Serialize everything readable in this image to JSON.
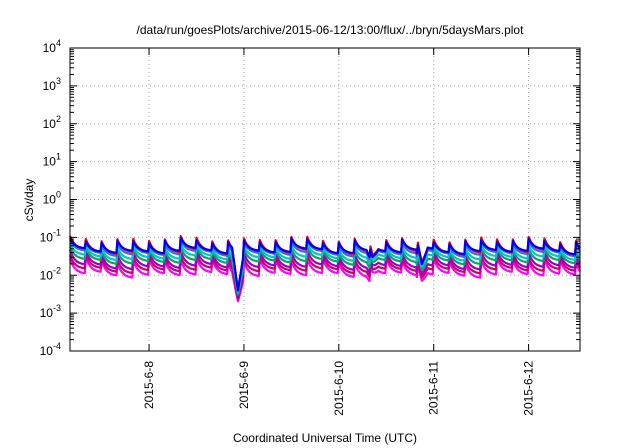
{
  "chart_data": {
    "type": "line",
    "title": "/data/run/goesPlots/archive/2015-06-12/13:00/flux/../bryn/5daysMars.plot",
    "xlabel": "Coordinated Universal Time (UTC)",
    "ylabel": "cSv/day",
    "yscale": "log",
    "ylim": [
      0.0001,
      10000
    ],
    "xlim": [
      "2015-06-07T04:00",
      "2015-06-12T13:00"
    ],
    "grid": true,
    "legend": "none",
    "x_ticks": [
      {
        "date": "2015-06-08T00:00",
        "label": "2015-6-8"
      },
      {
        "date": "2015-06-09T00:00",
        "label": "2015-6-9"
      },
      {
        "date": "2015-06-10T00:00",
        "label": "2015-6-10"
      },
      {
        "date": "2015-06-11T00:00",
        "label": "2015-6-11"
      },
      {
        "date": "2015-06-12T00:00",
        "label": "2015-6-12"
      }
    ],
    "y_ticks": [
      {
        "value": 0.0001,
        "base": "10",
        "exp": "-4"
      },
      {
        "value": 0.001,
        "base": "10",
        "exp": "-3"
      },
      {
        "value": 0.01,
        "base": "10",
        "exp": "-2"
      },
      {
        "value": 0.1,
        "base": "10",
        "exp": "-1"
      },
      {
        "value": 1,
        "base": "10",
        "exp": "0"
      },
      {
        "value": 10,
        "base": "10",
        "exp": "1"
      },
      {
        "value": 100,
        "base": "10",
        "exp": "2"
      },
      {
        "value": 1000,
        "base": "10",
        "exp": "3"
      },
      {
        "value": 10000,
        "base": "10",
        "exp": "4"
      }
    ],
    "cycle_hours": 4.0,
    "dips": [
      {
        "date": "2015-06-08T22:30",
        "depth": 1.1
      },
      {
        "date": "2015-06-10T08:30",
        "depth": 0.35
      },
      {
        "date": "2015-06-10T21:00",
        "depth": 0.55
      }
    ],
    "series": [
      {
        "color": "#ff00ff",
        "peak": 0.025,
        "trough": 0.01
      },
      {
        "color": "#cc0066",
        "peak": 0.03,
        "trough": 0.013
      },
      {
        "color": "#9900cc",
        "peak": 0.04,
        "trough": 0.016
      },
      {
        "color": "#00aa66",
        "peak": 0.048,
        "trough": 0.022
      },
      {
        "color": "#00c8c8",
        "peak": 0.058,
        "trough": 0.028
      },
      {
        "color": "#3366ff",
        "peak": 0.072,
        "trough": 0.036
      },
      {
        "color": "#ff0000",
        "peak": 0.09,
        "trough": 0.04
      },
      {
        "color": "#0000ee",
        "peak": 0.08,
        "trough": 0.042
      }
    ]
  }
}
